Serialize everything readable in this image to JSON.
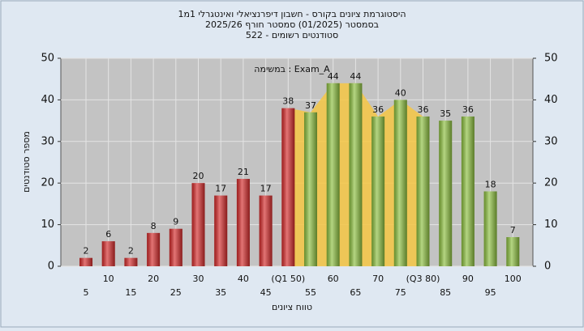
{
  "chart_data": {
    "type": "bar",
    "title": [
      "היסטוגרמת ציונים בקורס - חשבון דיפרנציאלי ואינטגרלי 1מ1",
      "בסמסטר  (01/2025)  סמסטר חורף  2025/26",
      "522 - סטודנטים רשומים"
    ],
    "annotation": "במשימה : Exam_A",
    "xlabel": "טווח ציונים",
    "ylabel": "מספר סטודנטים",
    "categories": [
      "5",
      "10",
      "15",
      "20",
      "25",
      "30",
      "35",
      "40",
      "45",
      "(Q1 50)",
      "55",
      "60",
      "65",
      "70",
      "75",
      "(Q3 80)",
      "85",
      "90",
      "95",
      "100"
    ],
    "values": [
      2,
      6,
      2,
      8,
      9,
      20,
      17,
      21,
      17,
      38,
      37,
      44,
      44,
      36,
      40,
      36,
      35,
      36,
      18,
      7
    ],
    "colors": [
      "#d42a2a",
      "#d42a2a",
      "#d42a2a",
      "#d42a2a",
      "#d42a2a",
      "#d42a2a",
      "#d42a2a",
      "#d42a2a",
      "#d42a2a",
      "#d42a2a",
      "#8cbf3f",
      "#8cbf3f",
      "#8cbf3f",
      "#8cbf3f",
      "#8cbf3f",
      "#8cbf3f",
      "#8cbf3f",
      "#8cbf3f",
      "#8cbf3f",
      "#8cbf3f"
    ],
    "area": {
      "color": "#f6c744",
      "values": [
        null,
        null,
        null,
        null,
        null,
        null,
        null,
        null,
        null,
        38,
        37,
        44,
        44,
        36,
        40,
        36,
        null,
        null,
        null,
        null
      ]
    },
    "ylim": [
      0,
      50
    ],
    "yticks": [
      0,
      10,
      20,
      30,
      40,
      50
    ],
    "y2lim": [
      0,
      50
    ],
    "y2ticks": [
      0,
      10,
      20,
      30,
      40,
      50
    ],
    "grid": true
  }
}
